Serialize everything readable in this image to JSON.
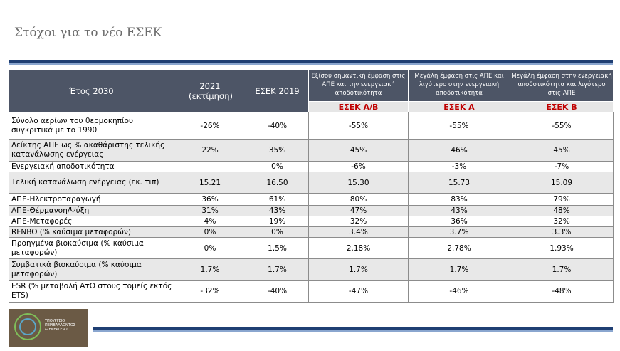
{
  "title": "Στόχοι για το νέο ΕΣΕΚ",
  "header": {
    "year_label": "Έτος 2030",
    "col_2021": "2021 (εκτίμηση)",
    "col_2019": "ΕΣΕΚ 2019",
    "scenario_ab_desc": "Εξίσου σημαντική έμφαση στις ΑΠΕ και την ενεργειακή αποδοτικότητα",
    "scenario_a_desc": "Μεγάλη έμφαση στις ΑΠΕ και λιγότερο στην ενεργειακή αποδοτικότητα",
    "scenario_b_desc": "Μεγάλη έμφαση στην ενεργειακή αποδοτικότητα και λιγότερο στις ΑΠΕ",
    "scenario_ab": "ΕΣΕΚ Α/Β",
    "scenario_a": "ΕΣΕΚ Α",
    "scenario_b": "ΕΣΕΚ Β"
  },
  "rows": [
    {
      "label": "Σύνολο αερίων του θερμοκηπίου συγκριτικά με το 1990",
      "v2021": "-26%",
      "v2019": "-40%",
      "ab": "-55%",
      "a": "-55%",
      "b": "-55%"
    },
    {
      "label": "Δείκτης ΑΠΕ ως % ακαθάριστης τελικής κατανάλωσης ενέργειας",
      "v2021": "22%",
      "v2019": "35%",
      "ab": "45%",
      "a": "46%",
      "b": "45%"
    },
    {
      "label": "Ενεργειακή αποδοτικότητα",
      "v2021": "",
      "v2019": "0%",
      "ab": "-6%",
      "a": "-3%",
      "b": "-7%"
    },
    {
      "label": "Τελική κατανάλωση ενέργειας (εκ. τιπ)",
      "v2021": "15.21",
      "v2019": "16.50",
      "ab": "15.30",
      "a": "15.73",
      "b": "15.09"
    },
    {
      "label": "ΑΠΕ-Ηλεκτροπαραγωγή",
      "v2021": "36%",
      "v2019": "61%",
      "ab": "80%",
      "a": "83%",
      "b": "79%"
    },
    {
      "label": "ΑΠΕ-Θέρμανση/Ψύξη",
      "v2021": "31%",
      "v2019": "43%",
      "ab": "47%",
      "a": "43%",
      "b": "48%"
    },
    {
      "label": "ΑΠΕ-Μεταφορές",
      "v2021": "4%",
      "v2019": "19%",
      "ab": "32%",
      "a": "36%",
      "b": "32%"
    },
    {
      "label": "RFNBO (% καύσιμα μεταφορών)",
      "v2021": "0%",
      "v2019": "0%",
      "ab": "3.4%",
      "a": "3.7%",
      "b": "3.3%"
    },
    {
      "label": "Προηγμένα βιοκαύσιμα (% καύσιμα μεταφορών)",
      "v2021": "0%",
      "v2019": "1.5%",
      "ab": "2.18%",
      "a": "2.78%",
      "b": "1.93%"
    },
    {
      "label": "Συμβατικά βιοκαύσιμα (% καύσιμα μεταφορών)",
      "v2021": "1.7%",
      "v2019": "1.7%",
      "ab": "1.7%",
      "a": "1.7%",
      "b": "1.7%"
    },
    {
      "label": "ESR (% μεταβολή ΑτΘ στους τομείς εκτός ETS)",
      "v2021": "-32%",
      "v2019": "-40%",
      "ab": "-47%",
      "a": "-46%",
      "b": "-48%"
    }
  ],
  "logo": {
    "line1": "ΥΠΟΥΡΓΕΙΟ",
    "line2": "ΠΕΡΙΒΑΛΛΟΝΤΟΣ",
    "line3": "& ΕΝΕΡΓΕΙΑΣ"
  },
  "colors": {
    "header_bg": "#4d5566",
    "scenario_text": "#c00000",
    "bar_dark": "#1f3f73",
    "bar_light": "#8aa6cf"
  }
}
